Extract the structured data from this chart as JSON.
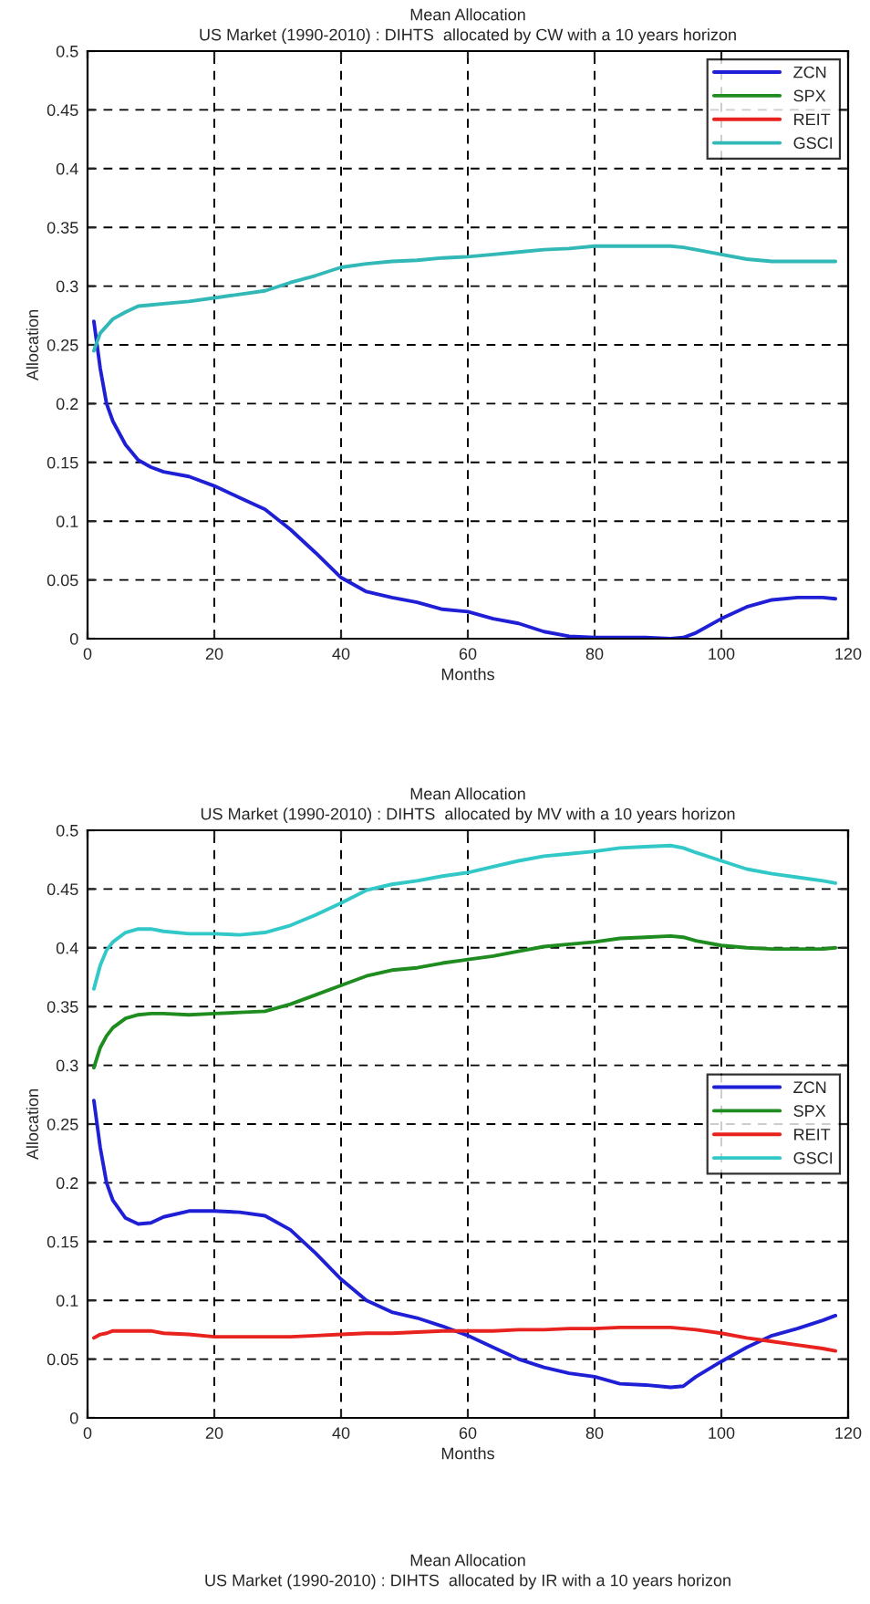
{
  "chart_data": [
    {
      "type": "line",
      "title": "Mean Allocation",
      "subtitle": "US Market (1990-2010) : DIHTS  allocated by CW with a 10 years horizon",
      "xlabel": "Months",
      "ylabel": "Allocation",
      "xlim": [
        0,
        120
      ],
      "ylim": [
        0,
        0.5
      ],
      "xticks": [
        0,
        20,
        40,
        60,
        80,
        100,
        120
      ],
      "yticks": [
        0,
        0.05,
        0.1,
        0.15,
        0.2,
        0.25,
        0.3,
        0.35,
        0.4,
        0.45,
        0.5
      ],
      "grid": true,
      "legend": "top right",
      "line_style": "solid",
      "x": [
        1,
        2,
        3,
        4,
        6,
        8,
        10,
        12,
        16,
        20,
        24,
        28,
        32,
        36,
        40,
        44,
        48,
        52,
        56,
        60,
        64,
        68,
        72,
        76,
        80,
        84,
        88,
        92,
        94,
        96,
        100,
        104,
        108,
        112,
        116,
        118
      ],
      "series": [
        {
          "name": "ZCN",
          "color": "#1f1fd6",
          "values": [
            0.27,
            0.23,
            0.2,
            0.185,
            0.165,
            0.152,
            0.146,
            0.142,
            0.138,
            0.13,
            0.12,
            0.11,
            0.093,
            0.073,
            0.052,
            0.04,
            0.035,
            0.031,
            0.025,
            0.023,
            0.017,
            0.013,
            0.006,
            0.002,
            0.001,
            0.001,
            0.001,
            0,
            0.001,
            0.005,
            0.017,
            0.027,
            0.033,
            0.035,
            0.035,
            0.034
          ]
        },
        {
          "name": "SPX",
          "color": "#1e8c1e",
          "values": [
            null,
            null,
            null,
            null,
            null,
            null,
            null,
            null,
            null,
            null,
            null,
            null,
            null,
            null,
            null,
            null,
            null,
            null,
            null,
            null,
            null,
            null,
            null,
            null,
            null,
            null,
            null,
            null,
            null,
            null,
            null,
            null,
            null,
            null,
            null,
            null
          ]
        },
        {
          "name": "REIT",
          "color": "#e8221e",
          "values": [
            null,
            null,
            null,
            null,
            null,
            null,
            null,
            null,
            null,
            null,
            null,
            null,
            null,
            null,
            null,
            null,
            null,
            null,
            null,
            null,
            null,
            null,
            null,
            null,
            null,
            null,
            null,
            null,
            null,
            null,
            null,
            null,
            null,
            null,
            null,
            null
          ]
        },
        {
          "name": "GSCI",
          "color": "#33b8b8",
          "values": [
            0.245,
            0.26,
            0.266,
            0.272,
            0.278,
            0.283,
            0.284,
            0.285,
            0.287,
            0.29,
            0.293,
            0.296,
            0.303,
            0.309,
            0.316,
            0.319,
            0.321,
            0.322,
            0.324,
            0.325,
            0.327,
            0.329,
            0.331,
            0.332,
            0.334,
            0.334,
            0.334,
            0.334,
            0.333,
            0.331,
            0.327,
            0.323,
            0.321,
            0.321,
            0.321,
            0.321
          ]
        }
      ]
    },
    {
      "type": "line",
      "title": "Mean Allocation",
      "subtitle": "US Market (1990-2010) : DIHTS  allocated by MV with a 10 years horizon",
      "xlabel": "Months",
      "ylabel": "Allocation",
      "xlim": [
        0,
        120
      ],
      "ylim": [
        0,
        0.5
      ],
      "xticks": [
        0,
        20,
        40,
        60,
        80,
        100,
        120
      ],
      "yticks": [
        0,
        0.05,
        0.1,
        0.15,
        0.2,
        0.25,
        0.3,
        0.35,
        0.4,
        0.45,
        0.5
      ],
      "grid": true,
      "legend": "right",
      "line_style": "solid",
      "x": [
        1,
        2,
        3,
        4,
        6,
        8,
        10,
        12,
        16,
        20,
        24,
        28,
        32,
        36,
        40,
        44,
        48,
        52,
        56,
        60,
        64,
        68,
        72,
        76,
        80,
        84,
        88,
        92,
        94,
        96,
        100,
        104,
        108,
        112,
        116,
        118
      ],
      "series": [
        {
          "name": "ZCN",
          "color": "#1f1fd6",
          "values": [
            0.27,
            0.23,
            0.2,
            0.185,
            0.17,
            0.165,
            0.166,
            0.171,
            0.176,
            0.176,
            0.175,
            0.172,
            0.16,
            0.14,
            0.118,
            0.1,
            0.09,
            0.085,
            0.078,
            0.07,
            0.06,
            0.05,
            0.043,
            0.038,
            0.035,
            0.029,
            0.028,
            0.026,
            0.027,
            0.035,
            0.048,
            0.06,
            0.07,
            0.076,
            0.083,
            0.087
          ]
        },
        {
          "name": "SPX",
          "color": "#1e8c1e",
          "values": [
            0.298,
            0.315,
            0.325,
            0.332,
            0.34,
            0.343,
            0.344,
            0.344,
            0.343,
            0.344,
            0.345,
            0.346,
            0.352,
            0.36,
            0.368,
            0.376,
            0.381,
            0.383,
            0.387,
            0.39,
            0.393,
            0.397,
            0.401,
            0.403,
            0.405,
            0.408,
            0.409,
            0.41,
            0.409,
            0.406,
            0.402,
            0.4,
            0.399,
            0.399,
            0.399,
            0.4
          ]
        },
        {
          "name": "REIT",
          "color": "#e8221e",
          "values": [
            0.068,
            0.071,
            0.072,
            0.074,
            0.074,
            0.074,
            0.074,
            0.072,
            0.071,
            0.069,
            0.069,
            0.069,
            0.069,
            0.07,
            0.071,
            0.072,
            0.072,
            0.073,
            0.074,
            0.074,
            0.074,
            0.075,
            0.075,
            0.076,
            0.076,
            0.077,
            0.077,
            0.077,
            0.076,
            0.075,
            0.072,
            0.068,
            0.065,
            0.062,
            0.059,
            0.057
          ]
        },
        {
          "name": "GSCI",
          "color": "#33c8c8",
          "values": [
            0.365,
            0.385,
            0.398,
            0.405,
            0.413,
            0.416,
            0.416,
            0.414,
            0.412,
            0.412,
            0.411,
            0.413,
            0.419,
            0.428,
            0.438,
            0.449,
            0.454,
            0.457,
            0.461,
            0.464,
            0.469,
            0.474,
            0.478,
            0.48,
            0.482,
            0.485,
            0.486,
            0.487,
            0.485,
            0.481,
            0.474,
            0.467,
            0.463,
            0.46,
            0.457,
            0.455
          ]
        }
      ]
    },
    {
      "type": "other",
      "title": "Mean Allocation",
      "subtitle": "US Market (1990-2010) : DIHTS  allocated by IR with a 10 years horizon"
    }
  ]
}
